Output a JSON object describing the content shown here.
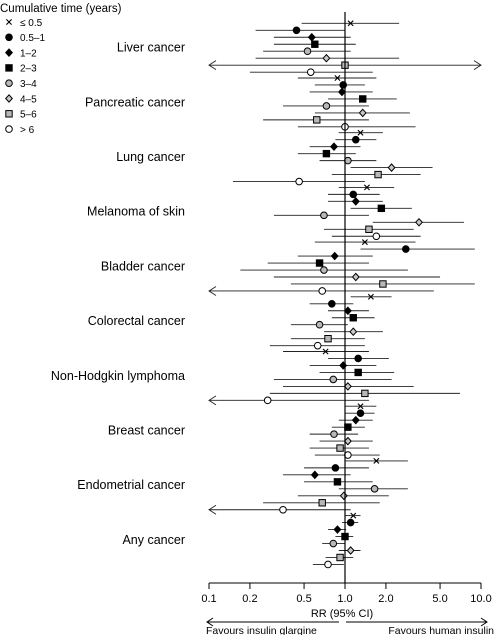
{
  "chart_data": {
    "type": "forest",
    "xlabel": "RR (95% CI)",
    "xscale": "log",
    "xlim": [
      0.1,
      10.0
    ],
    "reference_line": 1.0,
    "xticks": [
      0.1,
      0.2,
      0.5,
      1.0,
      2.0,
      5.0,
      10.0
    ],
    "xtick_labels": [
      "0.1",
      "0.2",
      "0.5",
      "1.0",
      "2.0",
      "5.0",
      "10.0"
    ],
    "favours_left": "Favours insulin glargine",
    "favours_right": "Favours human insulin",
    "legend": {
      "title": "Cumulative time (years)",
      "entries": [
        {
          "label": "≤ 0.5",
          "marker": "cross"
        },
        {
          "label": "0.5–1",
          "marker": "circle-filled"
        },
        {
          "label": "1–2",
          "marker": "diamond-filled"
        },
        {
          "label": "2–3",
          "marker": "square-filled"
        },
        {
          "label": "3–4",
          "marker": "circle-gray"
        },
        {
          "label": "4–5",
          "marker": "diamond-gray"
        },
        {
          "label": "5–6",
          "marker": "square-gray"
        },
        {
          "label": "> 6",
          "marker": "circle-open"
        }
      ]
    },
    "groups": [
      {
        "label": "Liver cancer",
        "estimates": [
          {
            "rr": 1.1,
            "lo": 0.48,
            "hi": 2.5
          },
          {
            "rr": 0.44,
            "lo": 0.22,
            "hi": 1.0
          },
          {
            "rr": 0.57,
            "lo": 0.3,
            "hi": 1.1
          },
          {
            "rr": 0.6,
            "lo": 0.3,
            "hi": 1.2
          },
          {
            "rr": 0.53,
            "lo": 0.25,
            "hi": 1.1
          },
          {
            "rr": 0.73,
            "lo": 0.22,
            "hi": 2.5
          },
          {
            "rr": 1.0,
            "lo": 0.1,
            "hi": 10.0,
            "arrow_left": true,
            "arrow_right": true
          },
          {
            "rr": 0.56,
            "lo": 0.2,
            "hi": 1.6
          }
        ]
      },
      {
        "label": "Pancreatic cancer",
        "estimates": [
          {
            "rr": 0.88,
            "lo": 0.45,
            "hi": 1.7
          },
          {
            "rr": 0.97,
            "lo": 0.6,
            "hi": 1.4
          },
          {
            "rr": 0.95,
            "lo": 0.55,
            "hi": 1.6
          },
          {
            "rr": 1.35,
            "lo": 0.75,
            "hi": 2.4
          },
          {
            "rr": 0.73,
            "lo": 0.35,
            "hi": 1.5
          },
          {
            "rr": 1.35,
            "lo": 0.6,
            "hi": 3.0
          },
          {
            "rr": 0.62,
            "lo": 0.25,
            "hi": 1.5
          },
          {
            "rr": 1.0,
            "lo": 0.45,
            "hi": 3.3
          }
        ]
      },
      {
        "label": "Lung cancer",
        "estimates": [
          {
            "rr": 1.3,
            "lo": 0.9,
            "hi": 1.9
          },
          {
            "rr": 1.2,
            "lo": 0.85,
            "hi": 1.7
          },
          {
            "rr": 0.83,
            "lo": 0.55,
            "hi": 1.3
          },
          {
            "rr": 0.73,
            "lo": 0.45,
            "hi": 1.2
          },
          {
            "rr": 1.05,
            "lo": 0.65,
            "hi": 1.7
          },
          {
            "rr": 2.2,
            "lo": 1.1,
            "hi": 4.4
          },
          {
            "rr": 1.75,
            "lo": 0.8,
            "hi": 3.6
          },
          {
            "rr": 0.46,
            "lo": 0.15,
            "hi": 1.4
          }
        ]
      },
      {
        "label": "Melanoma of skin",
        "estimates": [
          {
            "rr": 1.45,
            "lo": 0.9,
            "hi": 2.3
          },
          {
            "rr": 1.15,
            "lo": 0.75,
            "hi": 1.8
          },
          {
            "rr": 1.2,
            "lo": 0.75,
            "hi": 1.9
          },
          {
            "rr": 1.85,
            "lo": 1.1,
            "hi": 3.1
          },
          {
            "rr": 0.7,
            "lo": 0.3,
            "hi": 1.5
          },
          {
            "rr": 3.5,
            "lo": 1.6,
            "hi": 7.5
          },
          {
            "rr": 1.5,
            "lo": 0.7,
            "hi": 3.2
          },
          {
            "rr": 1.7,
            "lo": 0.8,
            "hi": 3.6
          }
        ]
      },
      {
        "label": "Bladder cancer",
        "estimates": [
          {
            "rr": 1.4,
            "lo": 0.6,
            "hi": 3.3
          },
          {
            "rr": 2.8,
            "lo": 1.3,
            "hi": 9.0
          },
          {
            "rr": 0.84,
            "lo": 0.45,
            "hi": 1.6
          },
          {
            "rr": 0.65,
            "lo": 0.27,
            "hi": 1.5
          },
          {
            "rr": 0.7,
            "lo": 0.17,
            "hi": 2.9
          },
          {
            "rr": 1.2,
            "lo": 0.3,
            "hi": 5.0
          },
          {
            "rr": 1.9,
            "lo": 0.4,
            "hi": 9.0
          },
          {
            "rr": 0.68,
            "lo": 0.1,
            "hi": 4.5,
            "arrow_left": true
          }
        ]
      },
      {
        "label": "Colorectal cancer",
        "estimates": [
          {
            "rr": 1.55,
            "lo": 1.1,
            "hi": 2.2
          },
          {
            "rr": 0.8,
            "lo": 0.55,
            "hi": 1.15
          },
          {
            "rr": 1.05,
            "lo": 0.75,
            "hi": 1.5
          },
          {
            "rr": 1.15,
            "lo": 0.8,
            "hi": 1.65
          },
          {
            "rr": 0.65,
            "lo": 0.4,
            "hi": 1.05
          },
          {
            "rr": 1.15,
            "lo": 0.7,
            "hi": 1.9
          },
          {
            "rr": 0.75,
            "lo": 0.4,
            "hi": 1.4
          },
          {
            "rr": 0.63,
            "lo": 0.28,
            "hi": 1.4
          }
        ]
      },
      {
        "label": "Non-Hodgkin lymphoma",
        "estimates": [
          {
            "rr": 0.72,
            "lo": 0.35,
            "hi": 1.5
          },
          {
            "rr": 1.25,
            "lo": 0.75,
            "hi": 2.1
          },
          {
            "rr": 0.97,
            "lo": 0.55,
            "hi": 1.7
          },
          {
            "rr": 1.25,
            "lo": 0.65,
            "hi": 2.3
          },
          {
            "rr": 0.82,
            "lo": 0.3,
            "hi": 2.2
          },
          {
            "rr": 1.05,
            "lo": 0.35,
            "hi": 3.2
          },
          {
            "rr": 1.4,
            "lo": 0.28,
            "hi": 7.0
          },
          {
            "rr": 0.27,
            "lo": 0.1,
            "hi": 1.5,
            "arrow_left": true
          }
        ]
      },
      {
        "label": "Breast cancer",
        "estimates": [
          {
            "rr": 1.3,
            "lo": 1.0,
            "hi": 1.7
          },
          {
            "rr": 1.3,
            "lo": 1.0,
            "hi": 1.65
          },
          {
            "rr": 1.2,
            "lo": 0.9,
            "hi": 1.6
          },
          {
            "rr": 1.05,
            "lo": 0.8,
            "hi": 1.4
          },
          {
            "rr": 0.83,
            "lo": 0.55,
            "hi": 1.25
          },
          {
            "rr": 1.05,
            "lo": 0.65,
            "hi": 1.6
          },
          {
            "rr": 0.92,
            "lo": 0.55,
            "hi": 1.5
          },
          {
            "rr": 1.05,
            "lo": 0.6,
            "hi": 1.8
          }
        ]
      },
      {
        "label": "Endometrial cancer",
        "estimates": [
          {
            "rr": 1.7,
            "lo": 1.0,
            "hi": 2.9
          },
          {
            "rr": 0.85,
            "lo": 0.5,
            "hi": 1.5
          },
          {
            "rr": 0.6,
            "lo": 0.35,
            "hi": 1.1
          },
          {
            "rr": 0.88,
            "lo": 0.5,
            "hi": 1.6
          },
          {
            "rr": 1.65,
            "lo": 0.9,
            "hi": 2.9
          },
          {
            "rr": 0.98,
            "lo": 0.45,
            "hi": 2.1
          },
          {
            "rr": 0.68,
            "lo": 0.25,
            "hi": 1.8
          },
          {
            "rr": 0.35,
            "lo": 0.1,
            "hi": 1.1,
            "arrow_left": true
          }
        ]
      },
      {
        "label": "Any cancer",
        "estimates": [
          {
            "rr": 1.15,
            "lo": 1.0,
            "hi": 1.3
          },
          {
            "rr": 1.1,
            "lo": 0.95,
            "hi": 1.25
          },
          {
            "rr": 0.88,
            "lo": 0.75,
            "hi": 1.02
          },
          {
            "rr": 1.0,
            "lo": 0.85,
            "hi": 1.15
          },
          {
            "rr": 0.82,
            "lo": 0.68,
            "hi": 1.0
          },
          {
            "rr": 1.1,
            "lo": 0.9,
            "hi": 1.3
          },
          {
            "rr": 0.92,
            "lo": 0.72,
            "hi": 1.15
          },
          {
            "rr": 0.75,
            "lo": 0.58,
            "hi": 0.98
          }
        ]
      }
    ]
  }
}
